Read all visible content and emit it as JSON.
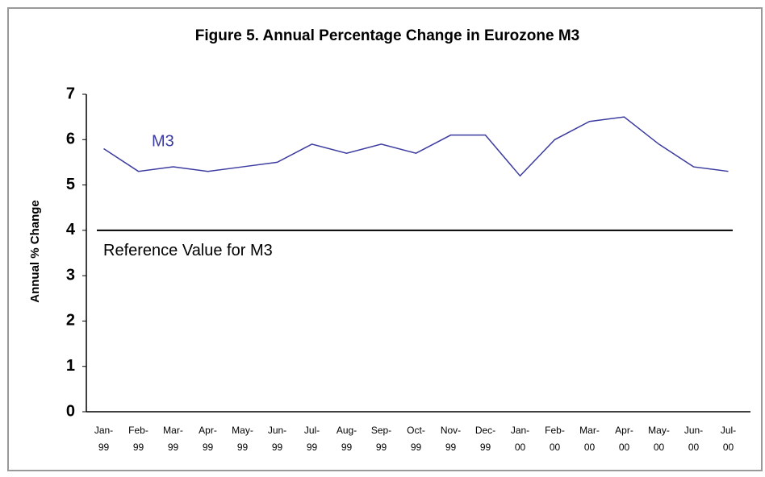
{
  "chart_data": {
    "type": "line",
    "title": "Figure 5. Annual Percentage Change in Eurozone M3",
    "y_label": "Annual % Change",
    "categories": [
      "Jan-99",
      "Feb-99",
      "Mar-99",
      "Apr-99",
      "May-99",
      "Jun-99",
      "Jul-99",
      "Aug-99",
      "Sep-99",
      "Oct-99",
      "Nov-99",
      "Dec-99",
      "Jan-00",
      "Feb-00",
      "Mar-00",
      "Apr-00",
      "May-00",
      "Jun-00",
      "Jul-00"
    ],
    "series": [
      {
        "name": "M3",
        "color": "#3c3ca0",
        "values": [
          5.8,
          5.3,
          5.4,
          5.3,
          5.4,
          5.5,
          5.9,
          5.7,
          5.9,
          5.7,
          6.1,
          6.1,
          5.2,
          6.0,
          6.4,
          6.5,
          5.9,
          5.4,
          5.3
        ]
      }
    ],
    "reference": {
      "label": "Reference Value for M3",
      "value": 4,
      "color": "#000000"
    },
    "ylim": [
      0,
      7
    ],
    "yticks": [
      0,
      1,
      2,
      3,
      4,
      5,
      6,
      7
    ],
    "grid": false
  }
}
